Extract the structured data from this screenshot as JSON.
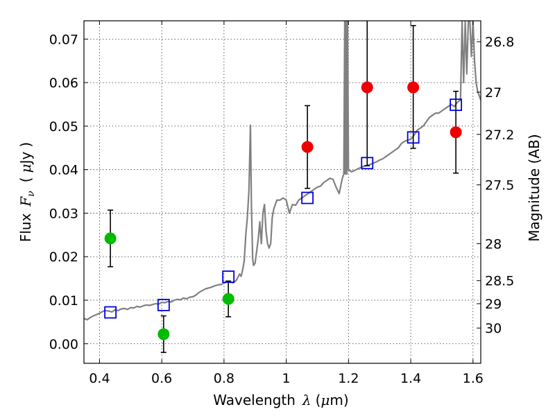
{
  "chart_data": {
    "type": "scatter",
    "xlabel_text": "Wavelength",
    "xlabel_symbol": "λ",
    "xlabel_unit_open": "(",
    "xlabel_unit_mu": "μ",
    "xlabel_unit_rest": "m)",
    "ylabel_text": "Flux",
    "ylabel_symbol": "F",
    "ylabel_sub": "ν",
    "ylabel_unit_open": "(",
    "ylabel_unit_mu": "μ",
    "ylabel_unit_rest": "Jy",
    "ylabel_unit_close": ")",
    "y2label": "Magnitude (AB)",
    "xlim": [
      0.35,
      1.625
    ],
    "ylim": [
      -0.0045,
      0.0742
    ],
    "grid": true,
    "x_ticks": [
      {
        "value": 0.4,
        "label": "0.4"
      },
      {
        "value": 0.6,
        "label": "0.6"
      },
      {
        "value": 0.8,
        "label": "0.8"
      },
      {
        "value": 1.0,
        "label": "1"
      },
      {
        "value": 1.2,
        "label": "1.2"
      },
      {
        "value": 1.4,
        "label": "1.4"
      },
      {
        "value": 1.6,
        "label": "1.6"
      }
    ],
    "y_ticks": [
      {
        "value": 0.0,
        "label": "0.00"
      },
      {
        "value": 0.01,
        "label": "0.01"
      },
      {
        "value": 0.02,
        "label": "0.02"
      },
      {
        "value": 0.03,
        "label": "0.03"
      },
      {
        "value": 0.04,
        "label": "0.04"
      },
      {
        "value": 0.05,
        "label": "0.05"
      },
      {
        "value": 0.06,
        "label": "0.06"
      },
      {
        "value": 0.07,
        "label": "0.07"
      }
    ],
    "y2_ticks": [
      {
        "value": 26.8,
        "flux": 0.0694,
        "label": "26.8"
      },
      {
        "value": 27.0,
        "flux": 0.0578,
        "label": "27"
      },
      {
        "value": 27.2,
        "flux": 0.0481,
        "label": "27.2"
      },
      {
        "value": 27.5,
        "flux": 0.0365,
        "label": "27.5"
      },
      {
        "value": 28.0,
        "flux": 0.023,
        "label": "28"
      },
      {
        "value": 28.5,
        "flux": 0.0145,
        "label": "28.5"
      },
      {
        "value": 29.0,
        "flux": 0.0092,
        "label": "29"
      },
      {
        "value": 30.0,
        "flux": 0.0036,
        "label": "30"
      }
    ],
    "model_spectrum": {
      "color": "#808080",
      "x": [
        0.35,
        0.36,
        0.37,
        0.38,
        0.39,
        0.4,
        0.41,
        0.42,
        0.43,
        0.44,
        0.45,
        0.46,
        0.47,
        0.48,
        0.49,
        0.5,
        0.51,
        0.52,
        0.53,
        0.54,
        0.55,
        0.56,
        0.57,
        0.58,
        0.59,
        0.6,
        0.61,
        0.62,
        0.63,
        0.64,
        0.65,
        0.66,
        0.67,
        0.68,
        0.69,
        0.7,
        0.71,
        0.72,
        0.73,
        0.74,
        0.75,
        0.76,
        0.77,
        0.78,
        0.79,
        0.8,
        0.81,
        0.82,
        0.83,
        0.84,
        0.85,
        0.855,
        0.86,
        0.865,
        0.87,
        0.875,
        0.88,
        0.885,
        0.888,
        0.892,
        0.895,
        0.9,
        0.91,
        0.915,
        0.92,
        0.925,
        0.93,
        0.935,
        0.94,
        0.945,
        0.95,
        0.955,
        0.96,
        0.97,
        0.98,
        0.99,
        1.0,
        1.01,
        1.02,
        1.03,
        1.04,
        1.05,
        1.06,
        1.07,
        1.08,
        1.09,
        1.1,
        1.11,
        1.12,
        1.13,
        1.14,
        1.15,
        1.16,
        1.17,
        1.18,
        1.185,
        1.188,
        1.19,
        1.192,
        1.195,
        1.197,
        1.2,
        1.21,
        1.22,
        1.23,
        1.24,
        1.25,
        1.26,
        1.27,
        1.28,
        1.29,
        1.3,
        1.31,
        1.32,
        1.33,
        1.34,
        1.35,
        1.36,
        1.37,
        1.38,
        1.39,
        1.4,
        1.41,
        1.42,
        1.43,
        1.44,
        1.45,
        1.46,
        1.47,
        1.48,
        1.49,
        1.5,
        1.51,
        1.52,
        1.53,
        1.54,
        1.55,
        1.56,
        1.565,
        1.57,
        1.575,
        1.58,
        1.585,
        1.59,
        1.595,
        1.6,
        1.605,
        1.61,
        1.615,
        1.62,
        1.625
      ],
      "y": [
        0.0058,
        0.0055,
        0.006,
        0.0064,
        0.0067,
        0.007,
        0.0074,
        0.0076,
        0.0075,
        0.0073,
        0.0078,
        0.0076,
        0.008,
        0.0081,
        0.0079,
        0.0083,
        0.0082,
        0.0086,
        0.0084,
        0.0087,
        0.0089,
        0.0088,
        0.009,
        0.0092,
        0.0091,
        0.0095,
        0.0094,
        0.0097,
        0.0096,
        0.01,
        0.0102,
        0.0101,
        0.0105,
        0.0103,
        0.0107,
        0.0108,
        0.0112,
        0.0118,
        0.0122,
        0.0126,
        0.0128,
        0.013,
        0.0133,
        0.0135,
        0.0136,
        0.0139,
        0.0142,
        0.0141,
        0.014,
        0.0146,
        0.016,
        0.0155,
        0.017,
        0.019,
        0.025,
        0.029,
        0.035,
        0.0502,
        0.032,
        0.0195,
        0.018,
        0.0185,
        0.024,
        0.028,
        0.023,
        0.03,
        0.032,
        0.026,
        0.023,
        0.022,
        0.023,
        0.029,
        0.031,
        0.033,
        0.033,
        0.0335,
        0.033,
        0.03,
        0.032,
        0.0318,
        0.033,
        0.0335,
        0.034,
        0.0345,
        0.035,
        0.0355,
        0.036,
        0.0362,
        0.037,
        0.0375,
        0.038,
        0.0378,
        0.036,
        0.0345,
        0.038,
        0.039,
        0.0742,
        0.039,
        0.0742,
        0.039,
        0.0742,
        0.04,
        0.0395,
        0.0398,
        0.0402,
        0.0405,
        0.0408,
        0.041,
        0.0412,
        0.0415,
        0.0418,
        0.0422,
        0.0425,
        0.043,
        0.0435,
        0.044,
        0.0445,
        0.045,
        0.046,
        0.0465,
        0.0468,
        0.047,
        0.0478,
        0.049,
        0.0495,
        0.05,
        0.051,
        0.052,
        0.0525,
        0.053,
        0.053,
        0.0535,
        0.054,
        0.0545,
        0.055,
        0.0545,
        0.0555,
        0.056,
        0.0742,
        0.06,
        0.0742,
        0.062,
        0.0742,
        0.0742,
        0.066,
        0.0742,
        0.065,
        0.06,
        0.058,
        0.057,
        0.056
      ]
    },
    "series": [
      {
        "color": "#00bb00",
        "marker": "circle",
        "points": [
          {
            "x": 0.435,
            "y": 0.0242,
            "err_low": 0.0065,
            "err_high": 0.0065
          },
          {
            "x": 0.606,
            "y": 0.0022,
            "err_low": 0.0042,
            "err_high": 0.0042
          },
          {
            "x": 0.814,
            "y": 0.0103,
            "err_low": 0.0041,
            "err_high": 0.0041
          }
        ]
      },
      {
        "color": "#ee0000",
        "marker": "circle",
        "points": [
          {
            "x": 1.068,
            "y": 0.0452,
            "err_low": 0.0095,
            "err_high": 0.0095
          },
          {
            "x": 1.26,
            "y": 0.0589,
            "err_low": 0.018,
            "err_high": 0.03
          },
          {
            "x": 1.408,
            "y": 0.0589,
            "err_low": 0.014,
            "err_high": 0.0142
          },
          {
            "x": 1.545,
            "y": 0.0486,
            "err_low": 0.0094,
            "err_high": 0.0094
          }
        ]
      },
      {
        "color": "#0000dd",
        "marker": "open-square",
        "points": [
          {
            "x": 0.435,
            "y": 0.0072
          },
          {
            "x": 0.606,
            "y": 0.0089
          },
          {
            "x": 0.814,
            "y": 0.0154
          },
          {
            "x": 1.068,
            "y": 0.0335
          },
          {
            "x": 1.26,
            "y": 0.0415
          },
          {
            "x": 1.408,
            "y": 0.0474
          },
          {
            "x": 1.545,
            "y": 0.0549
          }
        ]
      }
    ]
  }
}
